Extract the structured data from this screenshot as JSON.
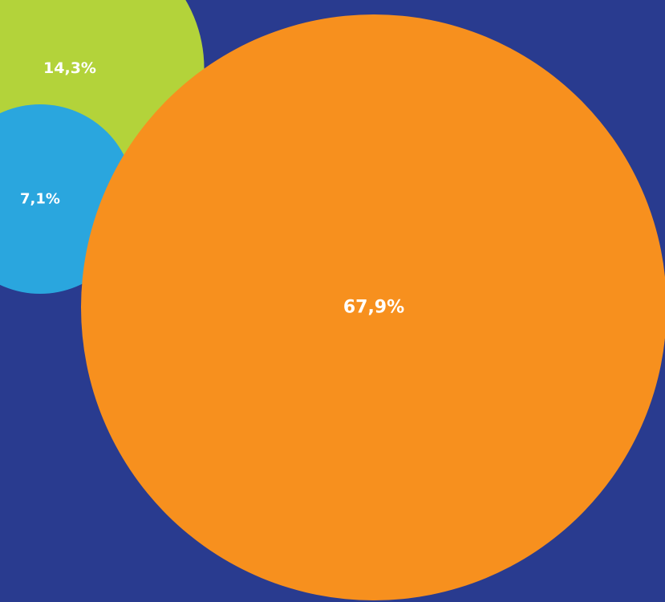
{
  "chart_data": {
    "type": "bubble",
    "background_color": "#293b8f",
    "bubbles": [
      {
        "label": "14,3%",
        "value": 14.3,
        "color": "#b3d33a"
      },
      {
        "label": "7,1%",
        "value": 7.1,
        "color": "#2aa6de"
      },
      {
        "label": "67,9%",
        "value": 67.9,
        "color": "#f7901e"
      }
    ]
  }
}
